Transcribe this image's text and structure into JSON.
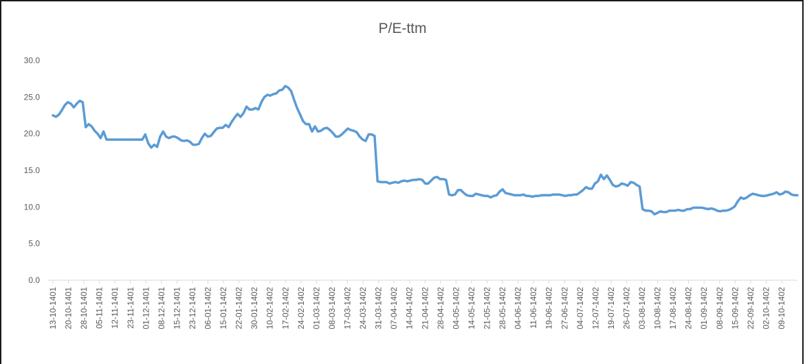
{
  "chart_data": {
    "type": "line",
    "title": "P/E-ttm",
    "xlabel": "",
    "ylabel": "",
    "ylim": [
      0,
      30
    ],
    "yticks": [
      "0.0",
      "5.0",
      "10.0",
      "15.0",
      "20.0",
      "25.0",
      "30.0"
    ],
    "grid": false,
    "legend": "none",
    "line_color": "#5B9BD5",
    "x_tick_labels": [
      "13-10-1401",
      "20-10-1401",
      "28-10-1401",
      "05-11-1401",
      "12-11-1401",
      "23-11-1401",
      "01-12-1401",
      "08-12-1401",
      "15-12-1401",
      "23-12-1401",
      "06-01-1402",
      "15-01-1402",
      "22-01-1402",
      "30-01-1402",
      "10-02-1402",
      "17-02-1402",
      "24-02-1402",
      "01-03-1402",
      "08-03-1402",
      "17-03-1402",
      "24-03-1402",
      "31-03-1402",
      "07-04-1402",
      "14-04-1402",
      "21-04-1402",
      "28-04-1402",
      "04-05-1402",
      "14-05-1402",
      "21-05-1402",
      "28-05-1402",
      "04-06-1402",
      "11-06-1402",
      "19-06-1402",
      "27-06-1402",
      "04-07-1402",
      "12-07-1402",
      "19-07-1402",
      "26-07-1402",
      "03-08-1402",
      "10-08-1402",
      "17-08-1402",
      "24-08-1402",
      "01-09-1402",
      "08-09-1402",
      "15-09-1402",
      "22-09-1402",
      "02-10-1402",
      "09-10-1402"
    ],
    "values": [
      22.5,
      22.3,
      22.6,
      23.2,
      23.9,
      24.3,
      24.1,
      23.6,
      24.1,
      24.5,
      24.3,
      20.9,
      21.3,
      21.0,
      20.4,
      20.0,
      19.4,
      20.3,
      19.2,
      19.2,
      19.2,
      19.2,
      19.2,
      19.2,
      19.2,
      19.2,
      19.2,
      19.2,
      19.2,
      19.2,
      19.2,
      19.9,
      18.7,
      18.1,
      18.5,
      18.2,
      19.6,
      20.3,
      19.6,
      19.4,
      19.6,
      19.6,
      19.4,
      19.1,
      19.0,
      19.1,
      18.9,
      18.5,
      18.5,
      18.6,
      19.4,
      20.0,
      19.6,
      19.7,
      20.2,
      20.7,
      20.8,
      20.8,
      21.2,
      20.9,
      21.6,
      22.2,
      22.7,
      22.3,
      22.8,
      23.7,
      23.3,
      23.3,
      23.5,
      23.3,
      24.3,
      25.0,
      25.3,
      25.2,
      25.4,
      25.5,
      25.9,
      26.0,
      26.5,
      26.3,
      25.8,
      24.6,
      23.5,
      22.6,
      21.7,
      21.3,
      21.3,
      20.3,
      21.0,
      20.3,
      20.4,
      20.7,
      20.8,
      20.5,
      20.1,
      19.6,
      19.6,
      19.9,
      20.3,
      20.7,
      20.5,
      20.4,
      20.2,
      19.6,
      19.2,
      19.0,
      19.9,
      19.9,
      19.7,
      13.5,
      13.4,
      13.4,
      13.4,
      13.2,
      13.3,
      13.4,
      13.3,
      13.5,
      13.6,
      13.5,
      13.6,
      13.7,
      13.7,
      13.8,
      13.7,
      13.2,
      13.2,
      13.6,
      14.0,
      14.1,
      13.8,
      13.8,
      13.7,
      11.7,
      11.6,
      11.7,
      12.3,
      12.3,
      11.9,
      11.6,
      11.5,
      11.5,
      11.8,
      11.7,
      11.6,
      11.5,
      11.5,
      11.3,
      11.5,
      11.6,
      12.1,
      12.4,
      11.9,
      11.8,
      11.7,
      11.6,
      11.6,
      11.6,
      11.7,
      11.5,
      11.5,
      11.4,
      11.5,
      11.5,
      11.6,
      11.6,
      11.6,
      11.6,
      11.7,
      11.7,
      11.7,
      11.6,
      11.5,
      11.6,
      11.6,
      11.7,
      11.7,
      12.0,
      12.3,
      12.7,
      12.5,
      12.5,
      13.2,
      13.5,
      14.4,
      13.8,
      14.3,
      13.7,
      13.0,
      12.8,
      12.9,
      13.2,
      13.1,
      12.9,
      13.4,
      13.3,
      13.0,
      12.8,
      9.7,
      9.5,
      9.5,
      9.4,
      9.0,
      9.2,
      9.4,
      9.3,
      9.3,
      9.5,
      9.5,
      9.5,
      9.6,
      9.5,
      9.5,
      9.7,
      9.7,
      9.9,
      9.9,
      9.9,
      9.9,
      9.8,
      9.7,
      9.8,
      9.7,
      9.5,
      9.4,
      9.5,
      9.5,
      9.6,
      9.8,
      10.1,
      10.8,
      11.3,
      11.1,
      11.3,
      11.6,
      11.8,
      11.7,
      11.6,
      11.5,
      11.5,
      11.6,
      11.7,
      11.8,
      12.0,
      11.7,
      11.8,
      12.1,
      12.0,
      11.7,
      11.6,
      11.6
    ]
  }
}
